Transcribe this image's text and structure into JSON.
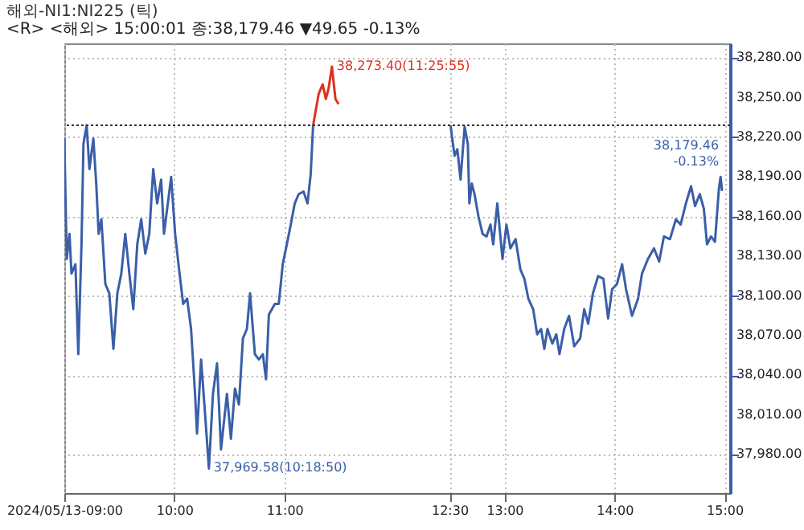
{
  "chart_data": {
    "type": "line",
    "title": "해외-NI1:NI225 (틱)",
    "subtitle": "<R> <해외> 15:00:01 종:38,179.46 ▼49.65 -0.13%",
    "series": [
      {
        "color": "#3a5fa8",
        "x": [
          9.0,
          9.022,
          9.047,
          9.065,
          9.101,
          9.127,
          9.156,
          9.174,
          9.203,
          9.228,
          9.264,
          9.29,
          9.312,
          9.337,
          9.373,
          9.409,
          9.446,
          9.482,
          9.518,
          9.554,
          9.591,
          9.627,
          9.663,
          9.699,
          9.736,
          9.772,
          9.808,
          9.844,
          9.88,
          9.906,
          9.971,
          10.007,
          10.043,
          10.08,
          10.116,
          10.152,
          10.188,
          10.206,
          10.243,
          10.279,
          10.3139,
          10.351,
          10.388,
          10.424,
          10.478,
          10.514,
          10.551,
          10.587,
          10.623,
          10.659,
          10.688,
          10.732,
          10.768,
          10.804,
          10.833,
          10.859,
          10.913,
          10.949,
          10.985,
          11.022,
          11.058,
          11.094,
          11.13,
          11.174,
          11.21,
          11.239,
          11.261,
          11.9,
          12.511,
          12.522,
          12.547,
          12.572,
          12.601,
          12.638,
          12.667,
          12.681,
          12.703,
          12.728,
          12.764,
          12.801,
          12.837,
          12.873,
          12.898,
          12.935,
          12.982,
          13.018,
          13.054,
          13.101,
          13.145,
          13.181,
          13.217,
          13.261,
          13.297,
          13.333,
          13.362,
          13.391,
          13.435,
          13.471,
          13.5,
          13.543,
          13.587,
          13.634,
          13.688,
          13.725,
          13.761,
          13.804,
          13.851,
          13.899,
          13.942,
          13.978,
          14.022,
          14.069,
          14.105,
          14.159,
          14.214,
          14.25,
          14.304,
          14.359,
          14.406,
          14.449,
          14.504,
          14.558,
          14.601,
          14.649,
          14.696,
          14.732,
          14.775,
          14.812,
          14.841,
          14.877,
          14.913,
          14.949,
          14.964,
          14.978
        ],
        "values": [
          38219,
          38128,
          38147,
          38117,
          38124,
          38056,
          38139,
          38215,
          38229,
          38196,
          38219,
          38185,
          38147,
          38158,
          38109,
          38102,
          38060,
          38102,
          38117,
          38147,
          38117,
          38090,
          38139,
          38158,
          38132,
          38147,
          38196,
          38170,
          38188,
          38147,
          38190,
          38147,
          38120,
          38094,
          38098,
          38075,
          38026,
          37996,
          38052,
          38011,
          37969.58,
          38026,
          38049,
          37984,
          38026,
          37992,
          38030,
          38018,
          38068,
          38075,
          38102,
          38056,
          38052,
          38056,
          38037,
          38086,
          38094,
          38094,
          38124,
          38139,
          38154,
          38170,
          38177,
          38179,
          38170,
          38192,
          38229,
          null,
          38229,
          38221,
          38206,
          38211,
          38188,
          38228,
          38215,
          38170,
          38185,
          38177,
          38160,
          38147,
          38145,
          38154,
          38139,
          38170,
          38128,
          38154,
          38136,
          38143,
          38120,
          38113,
          38098,
          38090,
          38071,
          38075,
          38060,
          38075,
          38064,
          38071,
          38056,
          38075,
          38085,
          38062,
          38068,
          38090,
          38079,
          38102,
          38115,
          38113,
          38083,
          38105,
          38109,
          38124,
          38105,
          38085,
          38098,
          38117,
          38128,
          38136,
          38126,
          38145,
          38143,
          38158,
          38154,
          38170,
          38183,
          38168,
          38177,
          38166,
          38139,
          38145,
          38141,
          38181,
          38190,
          38179.46
        ]
      },
      {
        "color": "#e03020",
        "x": [
          11.261,
          11.312,
          11.348,
          11.377,
          11.402,
          11.4319,
          11.464,
          11.493
        ],
        "values": [
          38229,
          38253,
          38260,
          38249,
          38257,
          38273.4,
          38249,
          38245
        ]
      }
    ],
    "xlim": [
      9,
      15.05
    ],
    "xticks": [
      {
        "value": 9,
        "label": "2024/05/13-09:00"
      },
      {
        "value": 10,
        "label": "10:00"
      },
      {
        "value": 11,
        "label": "11:00"
      },
      {
        "value": 12.5,
        "label": "12:30"
      },
      {
        "value": 13,
        "label": "13:00"
      },
      {
        "value": 14,
        "label": "14:00"
      },
      {
        "value": 15,
        "label": "15:00"
      }
    ],
    "ylim": [
      37951,
      38291
    ],
    "yticks": [
      {
        "value": 37980,
        "label": "37,980.00"
      },
      {
        "value": 38010,
        "label": "38,010.00"
      },
      {
        "value": 38040,
        "label": "38,040.00"
      },
      {
        "value": 38070,
        "label": "38,070.00"
      },
      {
        "value": 38100,
        "label": "38,100.00"
      },
      {
        "value": 38130,
        "label": "38,130.00"
      },
      {
        "value": 38160,
        "label": "38,160.00"
      },
      {
        "value": 38190,
        "label": "38,190.00"
      },
      {
        "value": 38220,
        "label": "38,220.00"
      },
      {
        "value": 38250,
        "label": "38,250.00"
      },
      {
        "value": 38280,
        "label": "38,280.00"
      }
    ],
    "ref_lines": [
      {
        "axis": "y",
        "value": 38229,
        "color": "#333333",
        "line_style": "dotted"
      }
    ],
    "annotations": [
      {
        "text": "38,273.40(11:25:55)",
        "x": 11.4319,
        "y": 38273.4
      },
      {
        "text": "37,969.58(10:18:50)",
        "x": 10.3139,
        "y": 37969.58
      },
      {
        "text": "38,179.46\n-0.13%",
        "x": 14.978,
        "y": 38179.46
      }
    ],
    "grid": true
  }
}
